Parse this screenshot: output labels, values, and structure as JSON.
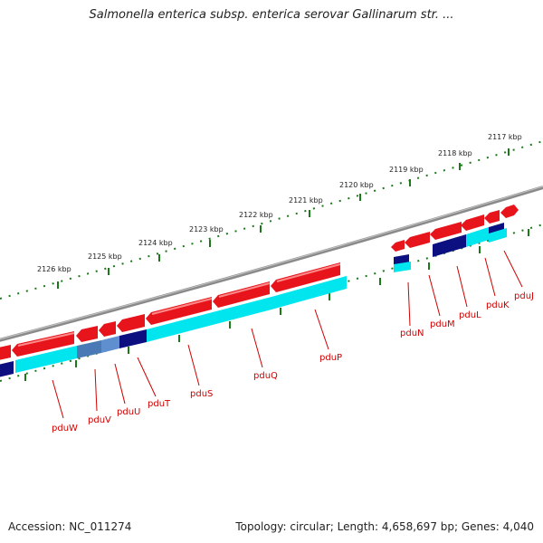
{
  "title": "Salmonella enterica subsp. enterica serovar Gallinarum str. ...",
  "accession": "Accession: NC_011274",
  "summary": "Topology: circular; Length: 4,658,697 bp; Genes: 4,040",
  "colors": {
    "backbone": "#8a8a8a",
    "tick": "#1a7a1a",
    "gene_forward": "#e8141b",
    "feature_blue": "#0b0f80",
    "feature_cyan": "#00e5ee",
    "feature_steel": "#4a7ab5",
    "label": "#d00000"
  },
  "ruler": {
    "ticks": [
      "2117 kbp",
      "2118 kbp",
      "2119 kbp",
      "2120 kbp",
      "2121 kbp",
      "2122 kbp",
      "2123 kbp",
      "2124 kbp",
      "2125 kbp",
      "2126 kbp"
    ]
  },
  "genes": [
    {
      "name": "pduW"
    },
    {
      "name": "pduV"
    },
    {
      "name": "pduU"
    },
    {
      "name": "pduT"
    },
    {
      "name": "pduS"
    },
    {
      "name": "pduQ"
    },
    {
      "name": "pduP"
    },
    {
      "name": "pduN"
    },
    {
      "name": "pduM"
    },
    {
      "name": "pduL"
    },
    {
      "name": "pduK"
    },
    {
      "name": "pduJ"
    }
  ]
}
